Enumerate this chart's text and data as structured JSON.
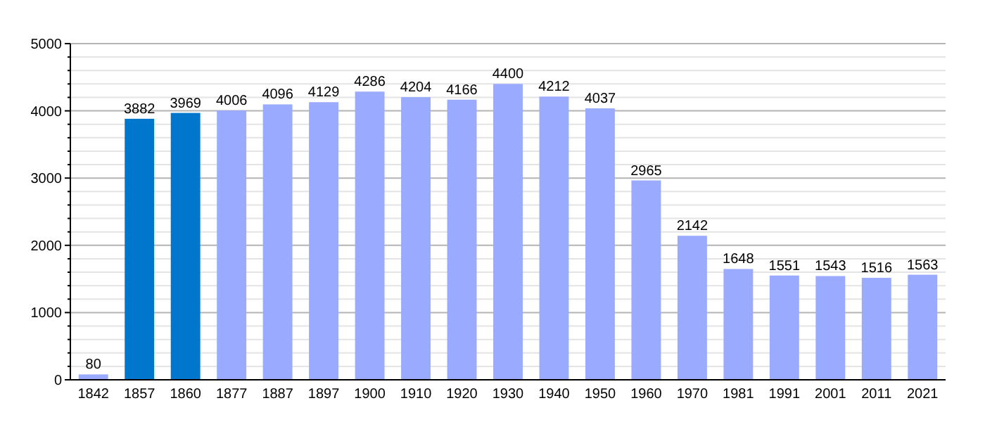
{
  "chart_data": {
    "type": "bar",
    "categories": [
      "1842",
      "1857",
      "1860",
      "1877",
      "1887",
      "1897",
      "1900",
      "1910",
      "1920",
      "1930",
      "1940",
      "1950",
      "1960",
      "1970",
      "1981",
      "1991",
      "2001",
      "2011",
      "2021"
    ],
    "values": [
      80,
      3882,
      3969,
      4006,
      4096,
      4129,
      4286,
      4204,
      4166,
      4400,
      4212,
      4037,
      2965,
      2142,
      1648,
      1551,
      1543,
      1516,
      1563
    ],
    "colors": [
      "#99aaff",
      "#0077cc",
      "#0077cc",
      "#99aaff",
      "#99aaff",
      "#99aaff",
      "#99aaff",
      "#99aaff",
      "#99aaff",
      "#99aaff",
      "#99aaff",
      "#99aaff",
      "#99aaff",
      "#99aaff",
      "#99aaff",
      "#99aaff",
      "#99aaff",
      "#99aaff",
      "#99aaff"
    ],
    "ylim": [
      0,
      5000
    ],
    "yticks": [
      0,
      {
        "value": 200,
        "label": null
      },
      {
        "value": 400,
        "label": null
      },
      {
        "value": 600,
        "label": null
      },
      {
        "value": 800,
        "label": null
      },
      1000,
      {
        "value": 1200,
        "label": null
      },
      {
        "value": 1400,
        "label": null
      },
      {
        "value": 1600,
        "label": null
      },
      {
        "value": 1800,
        "label": null
      },
      2000,
      {
        "value": 2200,
        "label": null
      },
      {
        "value": 2400,
        "label": null
      },
      {
        "value": 2600,
        "label": null
      },
      {
        "value": 2800,
        "label": null
      },
      3000,
      {
        "value": 3200,
        "label": null
      },
      {
        "value": 3400,
        "label": null
      },
      {
        "value": 3600,
        "label": null
      },
      {
        "value": 3800,
        "label": null
      },
      4000,
      {
        "value": 4200,
        "label": null
      },
      {
        "value": 4400,
        "label": null
      },
      {
        "value": 4600,
        "label": null
      },
      {
        "value": 4800,
        "label": null
      },
      5000
    ],
    "grid": true,
    "data_labels": true
  }
}
